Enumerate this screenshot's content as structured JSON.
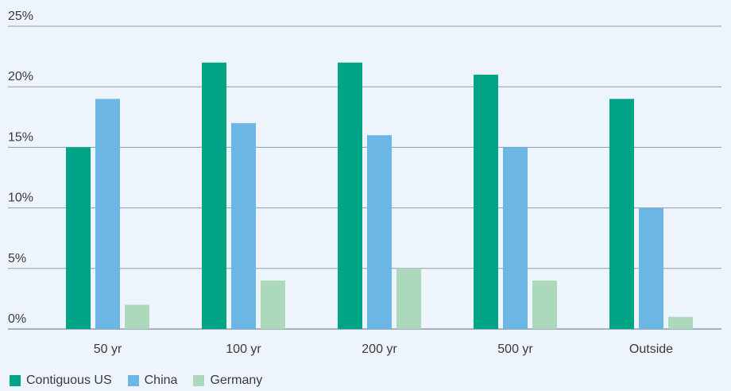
{
  "chart_data": {
    "type": "bar",
    "categories": [
      "50 yr",
      "100 yr",
      "200 yr",
      "500 yr",
      "Outside"
    ],
    "series": [
      {
        "name": "Contiguous US",
        "color": "#00a587",
        "values": [
          15,
          22,
          22,
          21,
          19
        ]
      },
      {
        "name": "China",
        "color": "#6cb6e6",
        "values": [
          19,
          17,
          16,
          15,
          10
        ]
      },
      {
        "name": "Germany",
        "color": "#acd8bb",
        "values": [
          2,
          4,
          5,
          4,
          1
        ]
      }
    ],
    "ylim": [
      0,
      25
    ],
    "yticks": [
      0,
      5,
      10,
      15,
      20,
      25
    ],
    "ytick_labels": [
      "0%",
      "5%",
      "10%",
      "15%",
      "20%",
      "25%"
    ],
    "grid": true,
    "legend_position": "bottom-left"
  }
}
